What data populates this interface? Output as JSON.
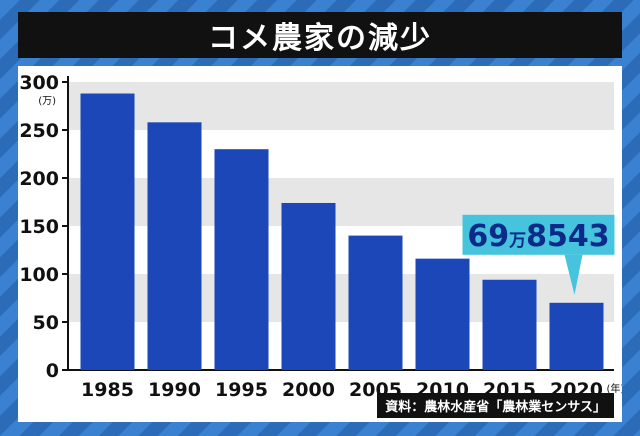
{
  "title": "コメ農家の減少",
  "source": "資料：農林水産省「農林業センサス」",
  "callout": {
    "main": "69",
    "unit": "万",
    "rest": "8543"
  },
  "colors": {
    "bar": "#1b47b8",
    "band": "#e6e6e6",
    "callout_bg": "#46c3dd",
    "callout_text": "#0c2a8a"
  },
  "chart_data": {
    "type": "bar",
    "categories": [
      "1985",
      "1990",
      "1995",
      "2000",
      "2005",
      "2010",
      "2015",
      "2020"
    ],
    "values": [
      288,
      258,
      230,
      174,
      140,
      116,
      94,
      70
    ],
    "ylim": [
      0,
      300
    ],
    "yticks": [
      0,
      50,
      100,
      150,
      200,
      250,
      300
    ],
    "ylabel_unit": "(万)",
    "xlabel_unit": "(年)"
  }
}
